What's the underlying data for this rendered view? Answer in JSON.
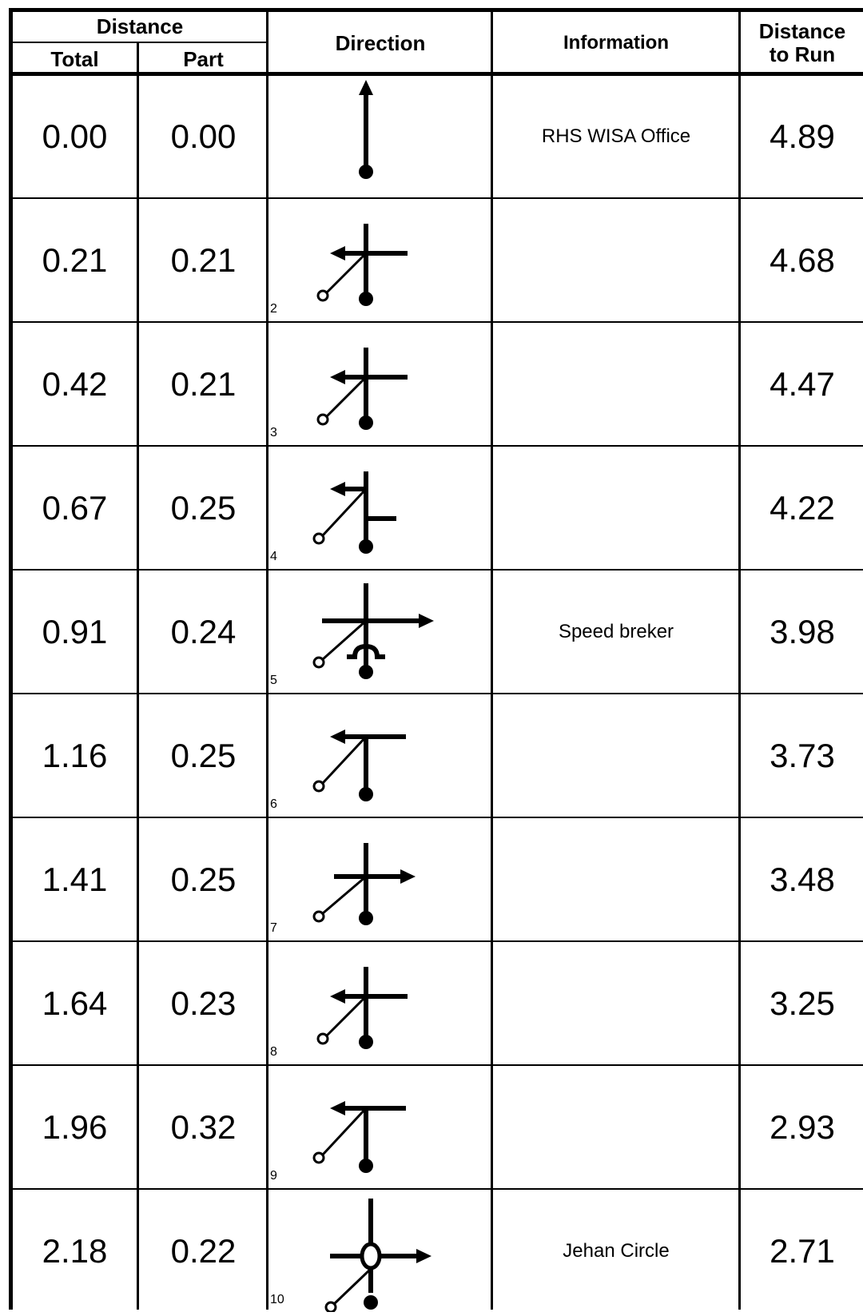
{
  "header": {
    "distance": "Distance",
    "total": "Total",
    "part": "Part",
    "direction": "Direction",
    "information": "Information",
    "distance_to_run_line1": "Distance",
    "distance_to_run_line2": "to Run"
  },
  "rows": [
    {
      "total": "0.00",
      "part": "0.00",
      "step": "",
      "info": "RHS WISA Office",
      "to_run": "4.89",
      "icon": "start-arrow-icon"
    },
    {
      "total": "0.21",
      "part": "0.21",
      "step": "2",
      "info": "",
      "to_run": "4.68",
      "icon": "turn-left-crossroad-icon"
    },
    {
      "total": "0.42",
      "part": "0.21",
      "step": "3",
      "info": "",
      "to_run": "4.47",
      "icon": "turn-left-crossroad-icon"
    },
    {
      "total": "0.67",
      "part": "0.25",
      "step": "4",
      "info": "",
      "to_run": "4.22",
      "icon": "turn-left-staggered-icon"
    },
    {
      "total": "0.91",
      "part": "0.24",
      "step": "5",
      "info": "Speed breker",
      "to_run": "3.98",
      "icon": "turn-right-speed-breaker-icon"
    },
    {
      "total": "1.16",
      "part": "0.25",
      "step": "6",
      "info": "",
      "to_run": "3.73",
      "icon": "turn-left-t-junction-icon"
    },
    {
      "total": "1.41",
      "part": "0.25",
      "step": "7",
      "info": "",
      "to_run": "3.48",
      "icon": "turn-right-crossroad-icon"
    },
    {
      "total": "1.64",
      "part": "0.23",
      "step": "8",
      "info": "",
      "to_run": "3.25",
      "icon": "turn-left-crossroad-icon"
    },
    {
      "total": "1.96",
      "part": "0.32",
      "step": "9",
      "info": "",
      "to_run": "2.93",
      "icon": "turn-left-t-junction-icon"
    },
    {
      "total": "2.18",
      "part": "0.22",
      "step": "10",
      "info": "Jehan Circle",
      "to_run": "2.71",
      "icon": "roundabout-right-icon"
    }
  ]
}
